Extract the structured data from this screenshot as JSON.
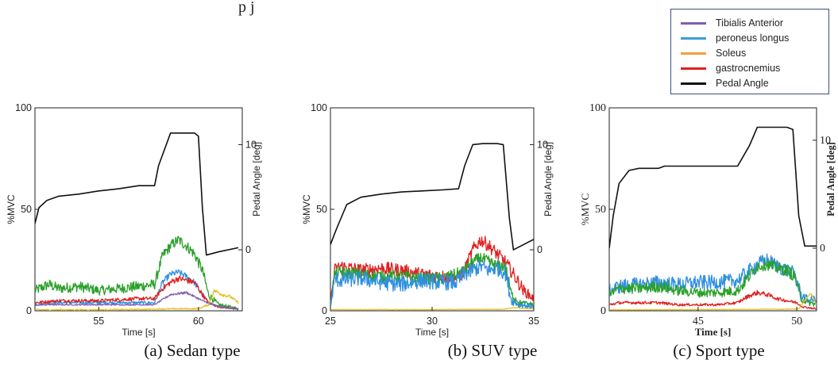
{
  "header_fragment": "p                                                     j",
  "legend": [
    {
      "label": "Tibialis Anterior",
      "color": "#7f5fb0"
    },
    {
      "label": "peroneus longus",
      "color": "#3a9fd0"
    },
    {
      "label": "Soleus",
      "color": "#f0a040"
    },
    {
      "label": "gastrocnemius",
      "color": "#e02020"
    },
    {
      "label": "Pedal Angle",
      "color": "#111111"
    }
  ],
  "colors": {
    "tibialis": "#7f5fb0",
    "peroneus": "#2f8fe0",
    "soleus": "#e8c020",
    "gastro": "#e02020",
    "pedal": "#111111",
    "green": "#2aa02a"
  },
  "chart_data": [
    {
      "type": "line",
      "caption": "(a) Sedan type",
      "xlabel": "Time [s]",
      "ylabel": "%MVC",
      "y2label": "Pedal Angle [deg]",
      "xlim": [
        51.8,
        62.2
      ],
      "ylim": [
        0,
        100
      ],
      "y2lim": [
        -5.8,
        13.5
      ],
      "xticks": [
        "55",
        "60"
      ],
      "xtick_values": [
        55,
        60
      ],
      "yticks": [
        "0",
        "50",
        "100"
      ],
      "ytick_values": [
        0,
        50,
        100
      ],
      "y2ticks": [
        "0",
        "10"
      ],
      "y2tick_values": [
        0,
        10
      ],
      "series": [
        {
          "name": "Pedal Angle",
          "key": "pedal",
          "axis": "y2",
          "x": [
            51.8,
            52.0,
            52.4,
            53.0,
            54.0,
            55.0,
            56.0,
            57.0,
            57.8,
            58.0,
            58.6,
            59.5,
            59.8,
            60.0,
            60.2,
            60.4,
            61.0,
            62.0
          ],
          "y": [
            2.5,
            4.0,
            4.7,
            5.1,
            5.3,
            5.6,
            5.8,
            6.1,
            6.1,
            8.0,
            11.1,
            11.1,
            11.1,
            10.8,
            4.0,
            -0.5,
            -0.2,
            0.2
          ]
        },
        {
          "name": "",
          "key": "green",
          "axis": "y",
          "noise": 1.8,
          "x": [
            51.8,
            52.5,
            53.0,
            54.0,
            55.0,
            56.0,
            57.0,
            57.8,
            58.2,
            58.6,
            59.0,
            59.4,
            59.8,
            60.2,
            60.5,
            61.0,
            62.0
          ],
          "y": [
            10,
            13,
            11,
            12,
            10,
            11,
            12,
            13,
            27,
            32,
            35,
            32,
            28,
            20,
            8,
            3,
            1
          ]
        },
        {
          "name": "peroneus longus",
          "key": "peroneus",
          "axis": "y",
          "noise": 1.0,
          "x": [
            51.8,
            53.0,
            55.0,
            57.0,
            57.8,
            58.2,
            58.6,
            59.0,
            59.4,
            59.8,
            60.2,
            60.5,
            61.0,
            62.0
          ],
          "y": [
            3,
            4,
            4,
            4,
            4,
            14,
            18,
            19,
            17,
            14,
            8,
            4,
            2,
            1
          ]
        },
        {
          "name": "gastrocnemius",
          "key": "gastro",
          "axis": "y",
          "noise": 1.0,
          "x": [
            51.8,
            53.0,
            55.0,
            57.0,
            57.8,
            58.2,
            58.6,
            59.0,
            59.4,
            59.8,
            60.2,
            60.5,
            61.0,
            62.0
          ],
          "y": [
            4,
            5,
            5,
            6,
            6,
            11,
            14,
            16,
            15,
            14,
            8,
            4,
            2,
            1
          ]
        },
        {
          "name": "Tibialis Anterior",
          "key": "tibialis",
          "axis": "y",
          "noise": 0.5,
          "x": [
            51.8,
            55.0,
            57.8,
            58.6,
            59.4,
            60.2,
            61.0,
            62.0
          ],
          "y": [
            3,
            3,
            3,
            8,
            9,
            5,
            2,
            1
          ]
        },
        {
          "name": "Soleus",
          "key": "soleus",
          "axis": "y",
          "noise": 0.8,
          "x": [
            51.8,
            55.0,
            57.8,
            59.0,
            60.0,
            60.5,
            60.8,
            61.2,
            61.6,
            62.0
          ],
          "y": [
            0.5,
            0.5,
            0.8,
            1.0,
            1.0,
            3,
            10,
            8,
            7,
            4
          ]
        }
      ]
    },
    {
      "type": "line",
      "caption": "(b) SUV type",
      "xlabel": "Time [s]",
      "ylabel": "%MVC",
      "y2label": "Pedal Angle [deg]",
      "xlim": [
        25,
        35
      ],
      "ylim": [
        0,
        100
      ],
      "y2lim": [
        -5.8,
        13.5
      ],
      "xticks": [
        "25",
        "30",
        "35"
      ],
      "xtick_values": [
        25,
        30,
        35
      ],
      "yticks": [
        "0",
        "50",
        "100"
      ],
      "ytick_values": [
        0,
        50,
        100
      ],
      "y2ticks": [
        "0",
        "10"
      ],
      "y2tick_values": [
        0,
        10
      ],
      "series": [
        {
          "name": "Pedal Angle",
          "key": "pedal",
          "axis": "y2",
          "x": [
            25.0,
            25.3,
            25.8,
            26.5,
            27.5,
            28.5,
            29.5,
            30.5,
            31.3,
            31.6,
            32.0,
            32.5,
            33.2,
            33.5,
            33.8,
            34.0,
            34.5,
            35.0
          ],
          "y": [
            0.5,
            2.0,
            4.3,
            5.0,
            5.3,
            5.5,
            5.6,
            5.7,
            5.8,
            8.0,
            10.0,
            10.1,
            10.1,
            10.0,
            3.0,
            0.0,
            0.5,
            1.0
          ]
        },
        {
          "name": "gastrocnemius",
          "key": "gastro",
          "axis": "y",
          "noise": 2.2,
          "x": [
            25.0,
            25.2,
            25.5,
            26.5,
            27.5,
            28.5,
            29.5,
            30.5,
            31.2,
            31.6,
            32.0,
            32.4,
            32.8,
            33.2,
            33.6,
            34.0,
            34.5,
            35.0
          ],
          "y": [
            3,
            20,
            22,
            20,
            21,
            20,
            18,
            17,
            16,
            20,
            30,
            35,
            32,
            28,
            24,
            18,
            10,
            6
          ]
        },
        {
          "name": "",
          "key": "green",
          "axis": "y",
          "noise": 2.0,
          "x": [
            25.0,
            25.2,
            25.5,
            26.5,
            27.5,
            28.5,
            29.5,
            30.5,
            31.2,
            31.6,
            32.0,
            32.4,
            32.8,
            33.2,
            33.6,
            33.9,
            34.3,
            35.0
          ],
          "y": [
            2,
            18,
            19,
            18,
            17,
            17,
            16,
            16,
            18,
            20,
            24,
            26,
            24,
            22,
            22,
            8,
            4,
            3
          ]
        },
        {
          "name": "peroneus longus",
          "key": "peroneus",
          "axis": "y",
          "noise": 2.6,
          "x": [
            25.0,
            25.2,
            25.5,
            26.5,
            27.5,
            28.5,
            29.5,
            30.5,
            31.2,
            31.6,
            32.0,
            32.4,
            32.8,
            33.2,
            33.6,
            33.9,
            34.3,
            35.0
          ],
          "y": [
            2,
            16,
            15,
            16,
            14,
            13,
            15,
            14,
            14,
            18,
            20,
            22,
            20,
            21,
            19,
            5,
            3,
            2
          ]
        },
        {
          "name": "Soleus",
          "key": "soleus",
          "axis": "y",
          "noise": 0.3,
          "x": [
            25.0,
            30.0,
            33.5,
            34.0,
            35.0
          ],
          "y": [
            0.6,
            0.6,
            0.8,
            1.5,
            1.0
          ]
        }
      ]
    },
    {
      "type": "line",
      "caption": "(c) Sport type",
      "xlabel": "Time [s]",
      "ylabel": "%MVC",
      "y2label": "Pedal Angle [deg]",
      "xlim": [
        40.5,
        51.0
      ],
      "ylim": [
        0,
        100
      ],
      "y2lim": [
        -5.8,
        13.0
      ],
      "xticks": [
        "45",
        "50"
      ],
      "xtick_values": [
        45,
        50
      ],
      "yticks": [
        "0",
        "50",
        "100"
      ],
      "ytick_values": [
        0,
        50,
        100
      ],
      "y2ticks": [
        "0",
        "10"
      ],
      "y2tick_values": [
        0,
        10
      ],
      "series": [
        {
          "name": "Pedal Angle",
          "key": "pedal",
          "axis": "y2",
          "x": [
            40.5,
            40.7,
            41.0,
            41.5,
            42.0,
            43.0,
            43.3,
            45.0,
            46.0,
            47.0,
            47.6,
            48.0,
            48.5,
            49.5,
            49.8,
            50.1,
            50.4,
            51.0
          ],
          "y": [
            0.0,
            3.0,
            6.0,
            7.2,
            7.4,
            7.4,
            7.6,
            7.6,
            7.6,
            7.6,
            9.5,
            11.2,
            11.2,
            11.2,
            11.0,
            3.0,
            0.2,
            0.2
          ]
        },
        {
          "name": "peroneus longus",
          "key": "peroneus",
          "axis": "y",
          "noise": 2.4,
          "x": [
            40.5,
            41.0,
            42.0,
            43.0,
            44.0,
            45.0,
            46.0,
            47.0,
            47.5,
            48.0,
            48.5,
            49.0,
            49.5,
            49.9,
            50.2,
            50.6,
            51.0
          ],
          "y": [
            10,
            12,
            13,
            14,
            13,
            14,
            14,
            15,
            19,
            23,
            25,
            22,
            20,
            18,
            8,
            5,
            6
          ]
        },
        {
          "name": "",
          "key": "green",
          "axis": "y",
          "noise": 2.0,
          "x": [
            40.5,
            41.0,
            42.0,
            43.0,
            44.0,
            45.0,
            46.0,
            47.0,
            47.5,
            48.0,
            48.5,
            49.0,
            49.5,
            49.9,
            50.2,
            50.6,
            51.0
          ],
          "y": [
            8,
            11,
            11,
            12,
            10,
            9,
            9,
            10,
            16,
            22,
            23,
            21,
            20,
            17,
            6,
            4,
            3
          ]
        },
        {
          "name": "gastrocnemius",
          "key": "gastro",
          "axis": "y",
          "noise": 1.0,
          "x": [
            40.5,
            41.0,
            42.0,
            43.0,
            44.0,
            45.0,
            46.0,
            47.0,
            47.5,
            48.0,
            48.5,
            49.0,
            49.5,
            50.0,
            50.3,
            51.0
          ],
          "y": [
            3,
            4,
            4,
            4,
            3,
            3,
            3,
            4,
            7,
            9,
            8,
            6,
            5,
            4,
            2,
            1
          ]
        },
        {
          "name": "Soleus",
          "key": "soleus",
          "axis": "y",
          "noise": 0.4,
          "x": [
            40.5,
            45.0,
            49.5,
            50.1,
            50.4,
            50.7,
            51.0
          ],
          "y": [
            0.5,
            0.6,
            0.8,
            1.0,
            5,
            9,
            3
          ]
        }
      ]
    }
  ]
}
